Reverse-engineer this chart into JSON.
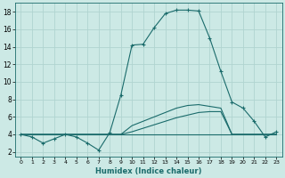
{
  "xlabel": "Humidex (Indice chaleur)",
  "xlim": [
    -0.5,
    23.5
  ],
  "ylim": [
    1.5,
    19.0
  ],
  "yticks": [
    2,
    4,
    6,
    8,
    10,
    12,
    14,
    16,
    18
  ],
  "xticks": [
    0,
    1,
    2,
    3,
    4,
    5,
    6,
    7,
    8,
    9,
    10,
    11,
    12,
    13,
    14,
    15,
    16,
    17,
    18,
    19,
    20,
    21,
    22,
    23
  ],
  "background_color": "#cce9e5",
  "grid_color": "#b0d4d0",
  "line_color": "#1a6b6b",
  "series_main": {
    "x": [
      0,
      1,
      2,
      3,
      4,
      5,
      6,
      7,
      8,
      9,
      10,
      11,
      12,
      13,
      14,
      15,
      16,
      17,
      18,
      19,
      20,
      21,
      22,
      23
    ],
    "y": [
      4.0,
      3.7,
      3.0,
      3.5,
      4.0,
      3.7,
      3.0,
      2.2,
      4.2,
      8.5,
      14.2,
      14.3,
      16.2,
      17.8,
      18.2,
      18.2,
      18.1,
      15.0,
      11.2,
      7.7,
      7.0,
      5.5,
      3.7,
      4.3
    ]
  },
  "series_lower": {
    "x": [
      0,
      1,
      2,
      3,
      4,
      5,
      6,
      7,
      8,
      9,
      10,
      11,
      12,
      13,
      14,
      15,
      16,
      17,
      18,
      19,
      20,
      21,
      22,
      23
    ],
    "y": [
      4.0,
      4.0,
      4.0,
      4.0,
      4.0,
      4.0,
      4.0,
      4.0,
      4.0,
      4.0,
      4.3,
      4.7,
      5.1,
      5.5,
      5.9,
      6.2,
      6.5,
      6.6,
      6.6,
      4.0,
      4.0,
      4.0,
      4.0,
      4.0
    ]
  },
  "series_upper": {
    "x": [
      0,
      1,
      2,
      3,
      4,
      5,
      6,
      7,
      8,
      9,
      10,
      11,
      12,
      13,
      14,
      15,
      16,
      17,
      18,
      19,
      20,
      21,
      22,
      23
    ],
    "y": [
      4.0,
      4.0,
      4.0,
      4.0,
      4.0,
      4.0,
      4.0,
      4.0,
      4.0,
      4.0,
      5.0,
      5.5,
      6.0,
      6.5,
      7.0,
      7.3,
      7.4,
      7.2,
      7.0,
      4.0,
      4.0,
      4.0,
      4.0,
      4.0
    ]
  },
  "series_flat": {
    "x": [
      0,
      23
    ],
    "y": [
      4.0,
      4.0
    ]
  }
}
